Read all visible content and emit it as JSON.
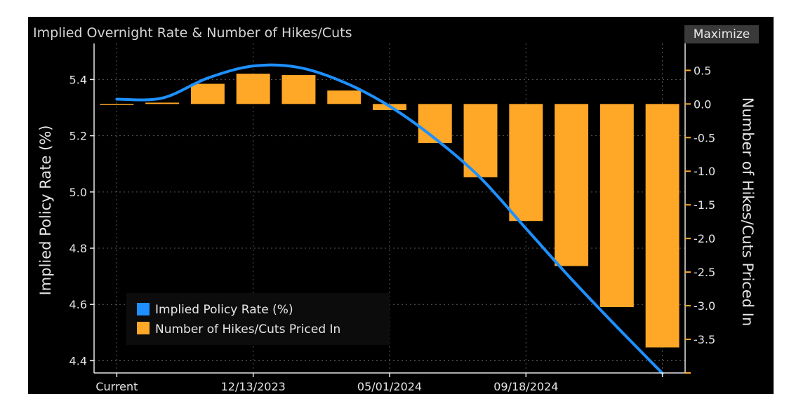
{
  "window": {
    "title": "Implied Overnight Rate & Number of Hikes/Cuts",
    "maximize_label": "Maximize"
  },
  "chart_data": {
    "type": "bar",
    "title": "Implied Overnight Rate & Number of Hikes/Cuts",
    "categories": [
      "Current",
      "",
      "",
      "12/13/2023",
      "",
      "",
      "05/01/2024",
      "",
      "",
      "09/18/2024",
      "",
      "",
      ""
    ],
    "series": [
      {
        "name": "Implied Policy Rate (%)",
        "type": "line",
        "axis": "left",
        "color": "#1e90ff",
        "values": [
          5.33,
          5.334,
          5.405,
          5.448,
          5.443,
          5.39,
          5.305,
          5.19,
          5.05,
          4.87,
          4.69,
          4.52,
          4.355
        ]
      },
      {
        "name": "Number of Hikes/Cuts Priced In",
        "type": "bar",
        "axis": "right",
        "color": "#ffa726",
        "values": [
          0,
          0.02,
          0.3,
          0.45,
          0.43,
          0.2,
          -0.09,
          -0.58,
          -1.09,
          -1.74,
          -2.41,
          -3.02,
          -3.62
        ]
      }
    ],
    "ylabel": "Implied Policy Rate (%)",
    "y2label": "Number of Hikes/Cuts Priced In",
    "ylim": [
      4.3562,
      5.5282
    ],
    "y2lim": [
      -4.0,
      0.9
    ],
    "yticks": [
      4.4,
      4.6,
      4.8,
      5.0,
      5.2,
      5.4
    ],
    "yticks_labels": [
      "4.4",
      "4.6",
      "4.8",
      "5.0",
      "5.2",
      "5.4"
    ],
    "y2ticks": [
      0.5,
      0.0,
      -0.5,
      -1.0,
      -1.5,
      -2.0,
      -2.5,
      -3.0,
      -3.5
    ],
    "y2ticks_labels": [
      "0.5",
      "0.0",
      "-0.5",
      "-1.0",
      "-1.5",
      "-2.0",
      "-2.5",
      "-3.0",
      "-3.5"
    ],
    "xtick_labels": [
      "Current",
      "12/13/2023",
      "05/01/2024",
      "09/18/2024"
    ],
    "grid": true,
    "legend": "bottom-left"
  }
}
